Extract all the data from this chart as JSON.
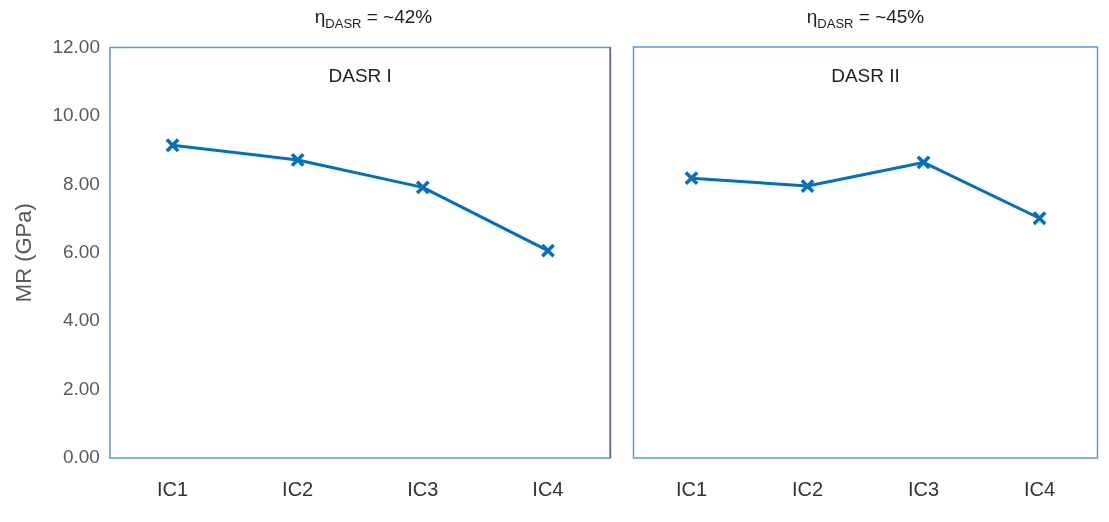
{
  "chart_data": [
    {
      "type": "line",
      "title": "η$_{DASR}$ = ~42%",
      "ylabel": "MR (GPa)",
      "categories": [
        "IC1",
        "IC2",
        "IC3",
        "IC4"
      ],
      "series": [
        {
          "color": "#0070c0",
          "values": [
            9.14,
            8.71,
            7.91,
            6.06
          ]
        }
      ],
      "ylim": [
        0,
        12
      ],
      "yticks": [
        {
          "value": 0,
          "label": "0.00"
        },
        {
          "value": 2,
          "label": "2.00"
        },
        {
          "value": 4,
          "label": "4.00"
        },
        {
          "value": 6,
          "label": "6.00"
        },
        {
          "value": 8,
          "label": "8.00"
        },
        {
          "value": 10,
          "label": "10.00"
        },
        {
          "value": 12,
          "label": "12.00"
        }
      ],
      "annotations": [
        "DASR I"
      ],
      "marker": "cross",
      "grid": false,
      "legend": false
    },
    {
      "type": "line",
      "title": "η$_{DASR}$ = ~45%",
      "categories": [
        "IC1",
        "IC2",
        "IC3",
        "IC4"
      ],
      "series": [
        {
          "color": "#0070c0",
          "values": [
            8.17,
            7.94,
            8.63,
            7.0
          ]
        }
      ],
      "ylim": [
        0,
        12
      ],
      "annotations": [
        "DASR II"
      ],
      "marker": "cross",
      "grid": false,
      "legend": false,
      "tick_labels": "x"
    }
  ]
}
